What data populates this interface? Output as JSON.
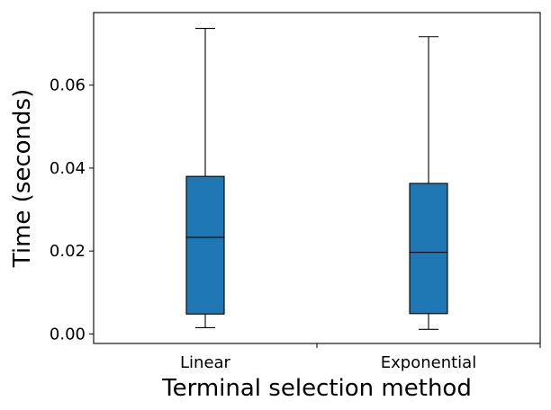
{
  "chart_data": {
    "type": "box",
    "title": "",
    "xlabel": "Terminal selection method",
    "ylabel": "Time (seconds)",
    "categories": [
      "Linear",
      "Exponential"
    ],
    "boxes": [
      {
        "category": "Linear",
        "whisker_low": 0.0015,
        "q1": 0.0048,
        "median": 0.0233,
        "q3": 0.038,
        "whisker_high": 0.0737
      },
      {
        "category": "Exponential",
        "whisker_low": 0.0011,
        "q1": 0.0049,
        "median": 0.0197,
        "q3": 0.0363,
        "whisker_high": 0.0717
      }
    ],
    "ylim": [
      -0.0023,
      0.0775
    ],
    "yticks": [
      0.0,
      0.02,
      0.04,
      0.06
    ],
    "ytick_labels": [
      "0.00",
      "0.02",
      "0.04",
      "0.06"
    ],
    "grid": false,
    "legend": "none",
    "box_color": "#1f77b4",
    "line_color": "#000000"
  }
}
